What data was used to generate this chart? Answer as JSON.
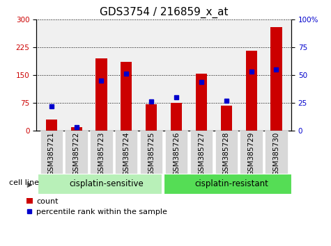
{
  "title": "GDS3754 / 216859_x_at",
  "samples": [
    "GSM385721",
    "GSM385722",
    "GSM385723",
    "GSM385724",
    "GSM385725",
    "GSM385726",
    "GSM385727",
    "GSM385728",
    "GSM385729",
    "GSM385730"
  ],
  "count_values": [
    30,
    8,
    195,
    185,
    70,
    75,
    153,
    68,
    215,
    280
  ],
  "percentile_values": [
    22,
    3,
    45,
    51,
    26,
    30,
    44,
    27,
    53,
    55
  ],
  "group1_label": "cisplatin-sensitive",
  "group2_label": "cisplatin-resistant",
  "group1_count": 5,
  "cell_line_label": "cell line",
  "legend_count": "count",
  "legend_pct": "percentile rank within the sample",
  "ylim_left": [
    0,
    300
  ],
  "ylim_right": [
    0,
    100
  ],
  "yticks_left": [
    0,
    75,
    150,
    225,
    300
  ],
  "yticks_right": [
    0,
    25,
    50,
    75,
    100
  ],
  "bar_color": "#cc0000",
  "dot_color": "#0000cc",
  "bg_plot": "#f0f0f0",
  "bg_xtick": "#d8d8d8",
  "bg_group1": "#b8f0b8",
  "bg_group2": "#55dd55",
  "title_fontsize": 11,
  "tick_fontsize": 7.5,
  "label_fontsize": 8,
  "group_fontsize": 8.5
}
